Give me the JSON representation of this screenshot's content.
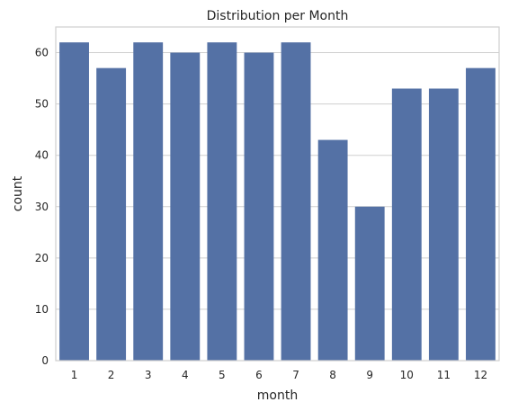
{
  "chart_data": {
    "type": "bar",
    "title": "Distribution per Month",
    "xlabel": "month",
    "ylabel": "count",
    "categories": [
      "1",
      "2",
      "3",
      "4",
      "5",
      "6",
      "7",
      "8",
      "9",
      "10",
      "11",
      "12"
    ],
    "values": [
      62,
      57,
      62,
      60,
      62,
      60,
      62,
      43,
      30,
      53,
      53,
      57
    ],
    "ylim": [
      0,
      65
    ],
    "yticks": [
      0,
      10,
      20,
      30,
      40,
      50,
      60
    ],
    "grid": "horizontal",
    "bar_color": "#5471a5",
    "grid_color": "#cfcfcf",
    "spine_color": "#cfcfcf"
  }
}
